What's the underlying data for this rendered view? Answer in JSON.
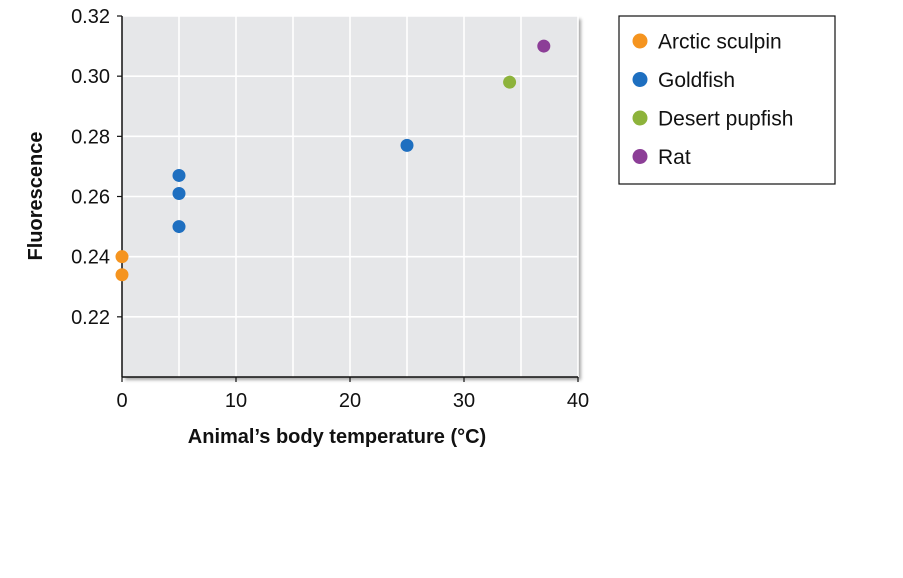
{
  "chart_data": {
    "type": "scatter",
    "xlabel": "Animal’s body temperature (°C)",
    "ylabel": "Fluorescence",
    "xlim": [
      0,
      40
    ],
    "ylim": [
      0.2,
      0.32
    ],
    "x_ticks": [
      0,
      10,
      20,
      30,
      40
    ],
    "x_tick_labels": [
      "0",
      "10",
      "20",
      "30",
      "40"
    ],
    "y_ticks": [
      0.22,
      0.24,
      0.26,
      0.28,
      0.3,
      0.32
    ],
    "y_tick_labels": [
      "0.22",
      "0.24",
      "0.26",
      "0.28",
      "0.30",
      "0.32"
    ],
    "grid": true,
    "legend_position": "outside-right-top",
    "series": [
      {
        "name": "Arctic sculpin",
        "color": "#f5941f",
        "points": [
          [
            0,
            0.24
          ],
          [
            0,
            0.234
          ]
        ]
      },
      {
        "name": "Goldfish",
        "color": "#1e6fc0",
        "points": [
          [
            5,
            0.267
          ],
          [
            5,
            0.261
          ],
          [
            5,
            0.25
          ],
          [
            25,
            0.277
          ]
        ]
      },
      {
        "name": "Desert pupfish",
        "color": "#8db33b",
        "points": [
          [
            34,
            0.298
          ]
        ]
      },
      {
        "name": "Rat",
        "color": "#8c3e97",
        "points": [
          [
            37,
            0.31
          ]
        ]
      }
    ]
  }
}
